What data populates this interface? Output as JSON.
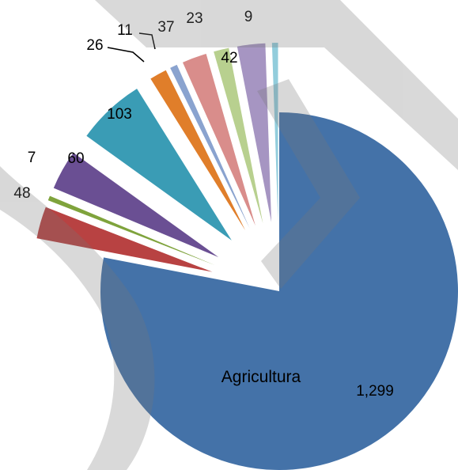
{
  "chart_data": {
    "type": "pie",
    "exploded": true,
    "title": "",
    "slices": [
      {
        "label": "Agricultura",
        "value": 1299,
        "value_label": "1,299",
        "color": "#4472A8"
      },
      {
        "label": "",
        "value": 48,
        "value_label": "48",
        "color": "#B84242"
      },
      {
        "label": "",
        "value": 7,
        "value_label": "7",
        "color": "#7FA33C"
      },
      {
        "label": "",
        "value": 60,
        "value_label": "60",
        "color": "#6A4F93"
      },
      {
        "label": "",
        "value": 103,
        "value_label": "103",
        "color": "#3A9CB5"
      },
      {
        "label": "",
        "value": 26,
        "value_label": "26",
        "color": "#E07E2A"
      },
      {
        "label": "",
        "value": 11,
        "value_label": "11",
        "color": "#8AA3CF"
      },
      {
        "label": "",
        "value": 37,
        "value_label": "37",
        "color": "#D98D8B"
      },
      {
        "label": "",
        "value": 23,
        "value_label": "23",
        "color": "#B8D08F"
      },
      {
        "label": "",
        "value": 42,
        "value_label": "42",
        "color": "#A695C2"
      },
      {
        "label": "",
        "value": 9,
        "value_label": "9",
        "color": "#92CDDC"
      }
    ]
  }
}
